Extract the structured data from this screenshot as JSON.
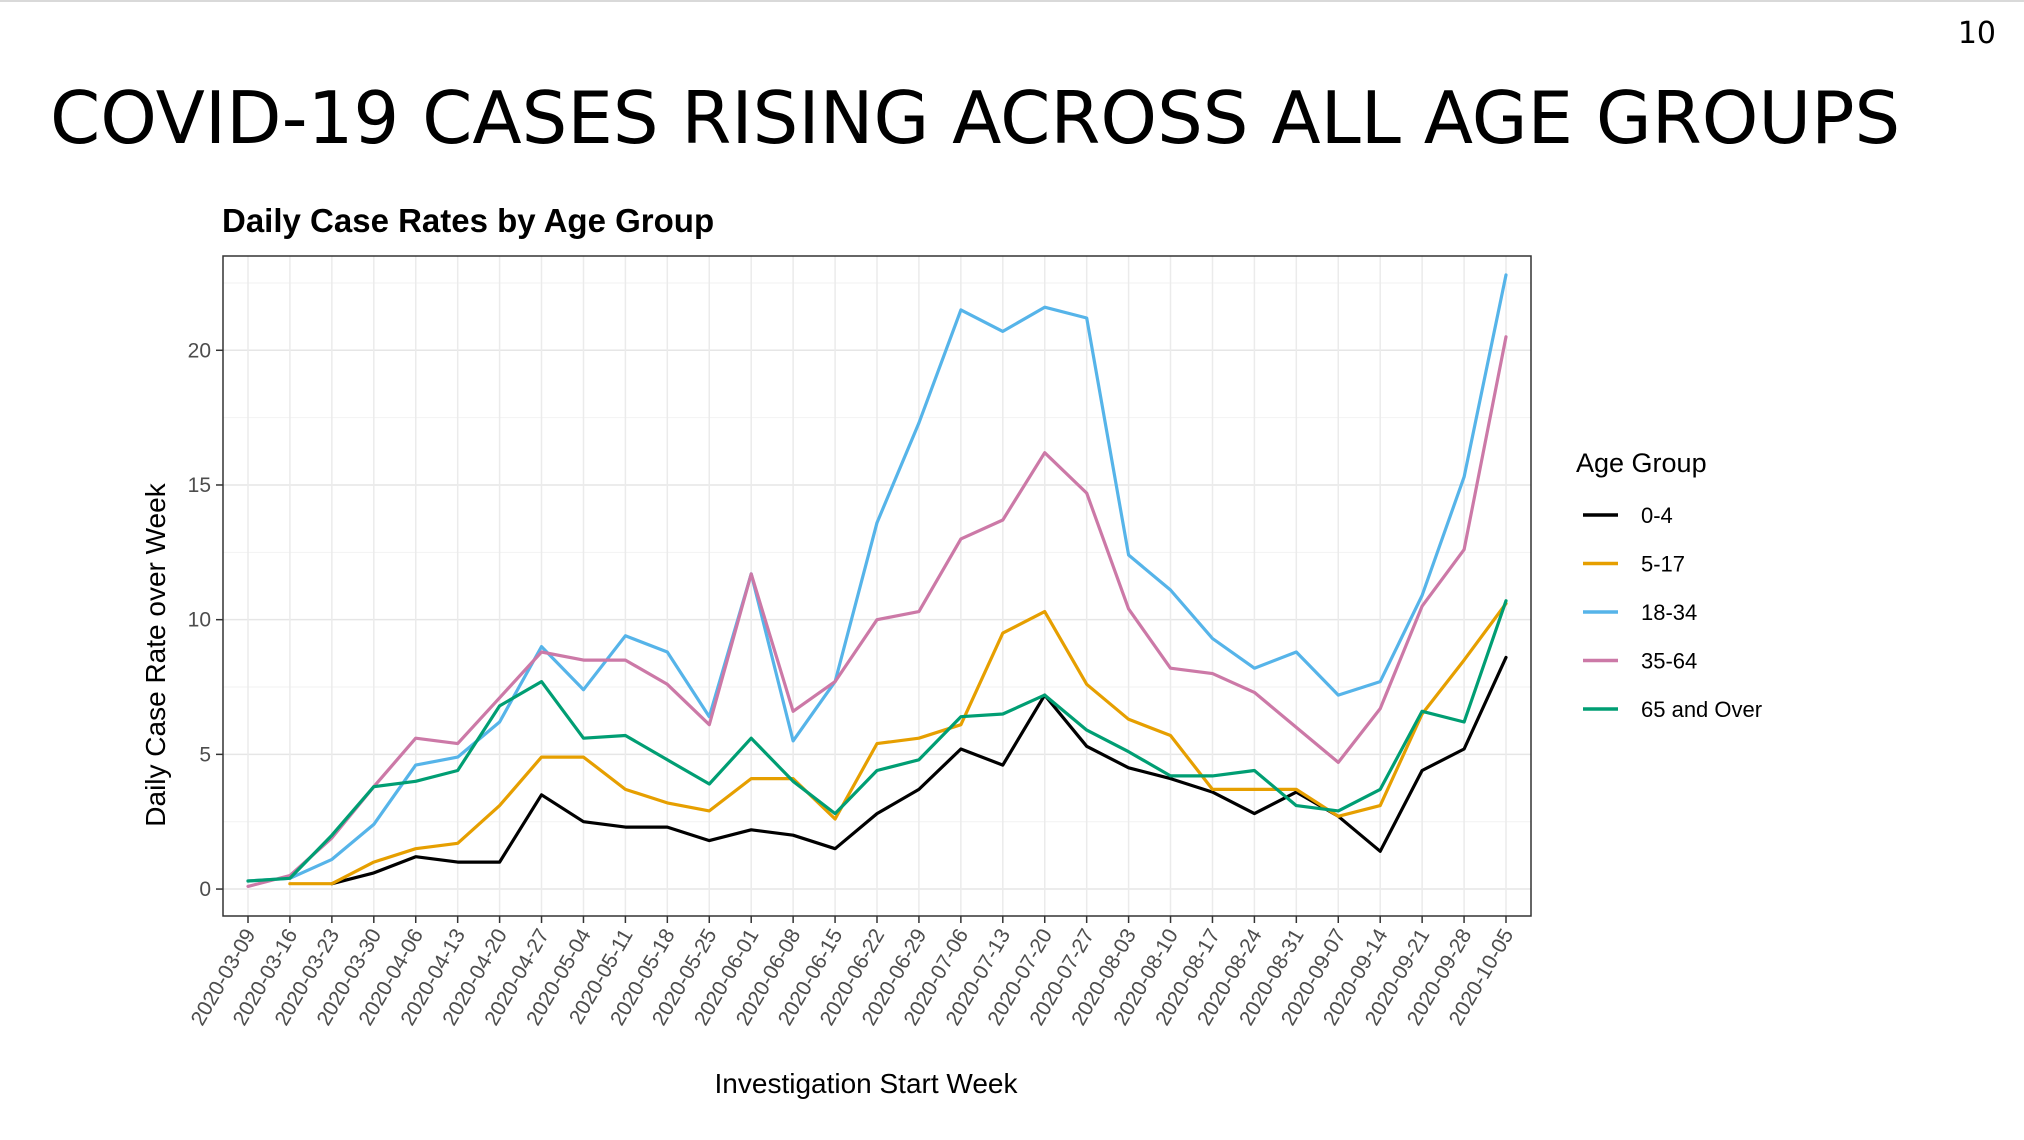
{
  "slide": {
    "number": "10",
    "title": "COVID-19 CASES RISING ACROSS ALL AGE GROUPS"
  },
  "chart_data": {
    "type": "line",
    "title": "Daily Case Rates by Age Group",
    "xlabel": "Investigation Start Week",
    "ylabel": "Daily Case Rate over Week",
    "ylim": [
      -1,
      23.5
    ],
    "yticks": [
      0,
      5,
      10,
      15,
      20
    ],
    "grid": true,
    "legend_title": "Age Group",
    "legend_position": "right",
    "x": [
      "2020-03-09",
      "2020-03-16",
      "2020-03-23",
      "2020-03-30",
      "2020-04-06",
      "2020-04-13",
      "2020-04-20",
      "2020-04-27",
      "2020-05-04",
      "2020-05-11",
      "2020-05-18",
      "2020-05-25",
      "2020-06-01",
      "2020-06-08",
      "2020-06-15",
      "2020-06-22",
      "2020-06-29",
      "2020-07-06",
      "2020-07-13",
      "2020-07-20",
      "2020-07-27",
      "2020-08-03",
      "2020-08-10",
      "2020-08-17",
      "2020-08-24",
      "2020-08-31",
      "2020-09-07",
      "2020-09-14",
      "2020-09-21",
      "2020-09-28",
      "2020-10-05"
    ],
    "series": [
      {
        "name": "0-4",
        "color": "#000000",
        "values": [
          null,
          null,
          0.2,
          0.6,
          1.2,
          1.0,
          1.0,
          3.5,
          2.5,
          2.3,
          2.3,
          1.8,
          2.2,
          2.0,
          1.5,
          2.8,
          3.7,
          5.2,
          4.6,
          7.2,
          5.3,
          4.5,
          4.1,
          3.6,
          2.8,
          3.6,
          2.7,
          1.4,
          4.4,
          5.2,
          8.6
        ]
      },
      {
        "name": "5-17",
        "color": "#E69F00",
        "values": [
          null,
          0.2,
          0.2,
          1.0,
          1.5,
          1.7,
          3.1,
          4.9,
          4.9,
          3.7,
          3.2,
          2.9,
          4.1,
          4.1,
          2.6,
          5.4,
          5.6,
          6.1,
          9.5,
          10.3,
          7.6,
          6.3,
          5.7,
          3.7,
          3.7,
          3.7,
          2.7,
          3.1,
          6.5,
          8.5,
          10.6
        ]
      },
      {
        "name": "18-34",
        "color": "#56B4E9",
        "values": [
          0.3,
          0.4,
          1.1,
          2.4,
          4.6,
          4.9,
          6.2,
          9.0,
          7.4,
          9.4,
          8.8,
          6.4,
          11.7,
          5.5,
          7.7,
          13.6,
          17.3,
          21.5,
          20.7,
          21.6,
          21.2,
          12.4,
          11.1,
          9.3,
          8.2,
          8.8,
          7.2,
          7.7,
          10.9,
          15.3,
          22.8
        ]
      },
      {
        "name": "35-64",
        "color": "#CC79A7",
        "values": [
          0.1,
          0.5,
          1.9,
          3.8,
          5.6,
          5.4,
          7.1,
          8.8,
          8.5,
          8.5,
          7.6,
          6.1,
          11.7,
          6.6,
          7.7,
          10.0,
          10.3,
          13.0,
          13.7,
          16.2,
          14.7,
          10.4,
          8.2,
          8.0,
          7.3,
          6.0,
          4.7,
          6.7,
          10.5,
          12.6,
          20.5
        ]
      },
      {
        "name": "65 and Over",
        "color": "#009E73",
        "values": [
          0.3,
          0.4,
          2.0,
          3.8,
          4.0,
          4.4,
          6.8,
          7.7,
          5.6,
          5.7,
          4.8,
          3.9,
          5.6,
          4.0,
          2.8,
          4.4,
          4.8,
          6.4,
          6.5,
          7.2,
          5.9,
          5.1,
          4.2,
          4.2,
          4.4,
          3.1,
          2.9,
          3.7,
          6.6,
          6.2,
          10.7
        ]
      }
    ]
  }
}
